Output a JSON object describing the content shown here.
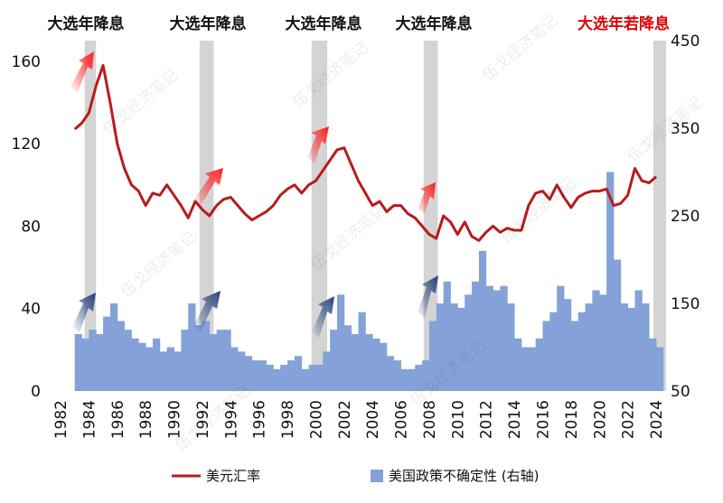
{
  "chart_data": {
    "type": "bar-line",
    "annotations": [
      "大选年降息",
      "大选年降息",
      "大选年降息",
      "大选年降息",
      "大选年若降息"
    ],
    "watermark": "伍戈经济笔记",
    "election_bands": [
      [
        1983.7,
        1984.5
      ],
      [
        1991.8,
        1992.8
      ],
      [
        1999.7,
        2000.8
      ],
      [
        2007.6,
        2008.6
      ],
      [
        2023.8,
        2024.7
      ]
    ],
    "x": [
      1983,
      1983.5,
      1984,
      1984.5,
      1985,
      1985.5,
      1986,
      1986.5,
      1987,
      1987.5,
      1988,
      1988.5,
      1989,
      1989.5,
      1990,
      1990.5,
      1991,
      1991.5,
      1992,
      1992.5,
      1993,
      1993.5,
      1994,
      1994.5,
      1995,
      1995.5,
      1996,
      1996.5,
      1997,
      1997.5,
      1998,
      1998.5,
      1999,
      1999.5,
      2000,
      2000.5,
      2001,
      2001.5,
      2002,
      2002.5,
      2003,
      2003.5,
      2004,
      2004.5,
      2005,
      2005.5,
      2006,
      2006.5,
      2007,
      2007.5,
      2008,
      2008.5,
      2009,
      2009.5,
      2010,
      2010.5,
      2011,
      2011.5,
      2012,
      2012.5,
      2013,
      2013.5,
      2014,
      2014.5,
      2015,
      2015.5,
      2016,
      2016.5,
      2017,
      2017.5,
      2018,
      2018.5,
      2019,
      2019.5,
      2020,
      2020.5,
      2021,
      2021.5,
      2022,
      2022.5,
      2023,
      2023.5,
      2024
    ],
    "series": [
      {
        "name": "美元汇率",
        "color": "#b71c1c",
        "kind": "line",
        "values": [
          127,
          130,
          135,
          148,
          158,
          140,
          120,
          108,
          100,
          97,
          90,
          96,
          95,
          100,
          95,
          90,
          84,
          92,
          88,
          85,
          90,
          93,
          94,
          90,
          86,
          83,
          85,
          87,
          90,
          95,
          98,
          100,
          96,
          100,
          102,
          107,
          112,
          117,
          118,
          110,
          102,
          96,
          90,
          92,
          87,
          90,
          90,
          86,
          84,
          80,
          76,
          74,
          85,
          82,
          76,
          82,
          75,
          73,
          77,
          80,
          77,
          79,
          78,
          78,
          90,
          96,
          97,
          93,
          100,
          94,
          89,
          94,
          96,
          97,
          97,
          98,
          90,
          91,
          95,
          108,
          102,
          101,
          104
        ]
      },
      {
        "name": "美国政策不确定性 (右轴)",
        "color": "#84a2d8",
        "kind": "bar",
        "axis": "y2",
        "values": [
          115,
          110,
          120,
          115,
          135,
          150,
          130,
          120,
          110,
          105,
          100,
          110,
          95,
          100,
          95,
          120,
          150,
          125,
          130,
          115,
          120,
          120,
          100,
          95,
          90,
          85,
          85,
          80,
          75,
          80,
          85,
          90,
          75,
          80,
          80,
          95,
          120,
          160,
          125,
          115,
          140,
          115,
          110,
          105,
          90,
          85,
          75,
          75,
          80,
          85,
          130,
          150,
          175,
          150,
          145,
          160,
          175,
          210,
          170,
          165,
          170,
          150,
          110,
          100,
          100,
          110,
          130,
          140,
          170,
          155,
          130,
          140,
          150,
          165,
          160,
          300,
          200,
          150,
          145,
          165,
          150,
          110,
          100
        ]
      }
    ],
    "xlim": [
      1982,
      2024.7
    ],
    "xticks": [
      1982,
      1984,
      1986,
      1988,
      1990,
      1992,
      1994,
      1996,
      1998,
      2000,
      2002,
      2004,
      2006,
      2008,
      2010,
      2012,
      2014,
      2016,
      2018,
      2020,
      2022,
      2024
    ],
    "ylim": [
      0,
      170
    ],
    "yticks": [
      0,
      40,
      80,
      120,
      160
    ],
    "y2lim": [
      50,
      450
    ],
    "y2ticks": [
      50,
      150,
      250,
      350,
      450
    ]
  }
}
